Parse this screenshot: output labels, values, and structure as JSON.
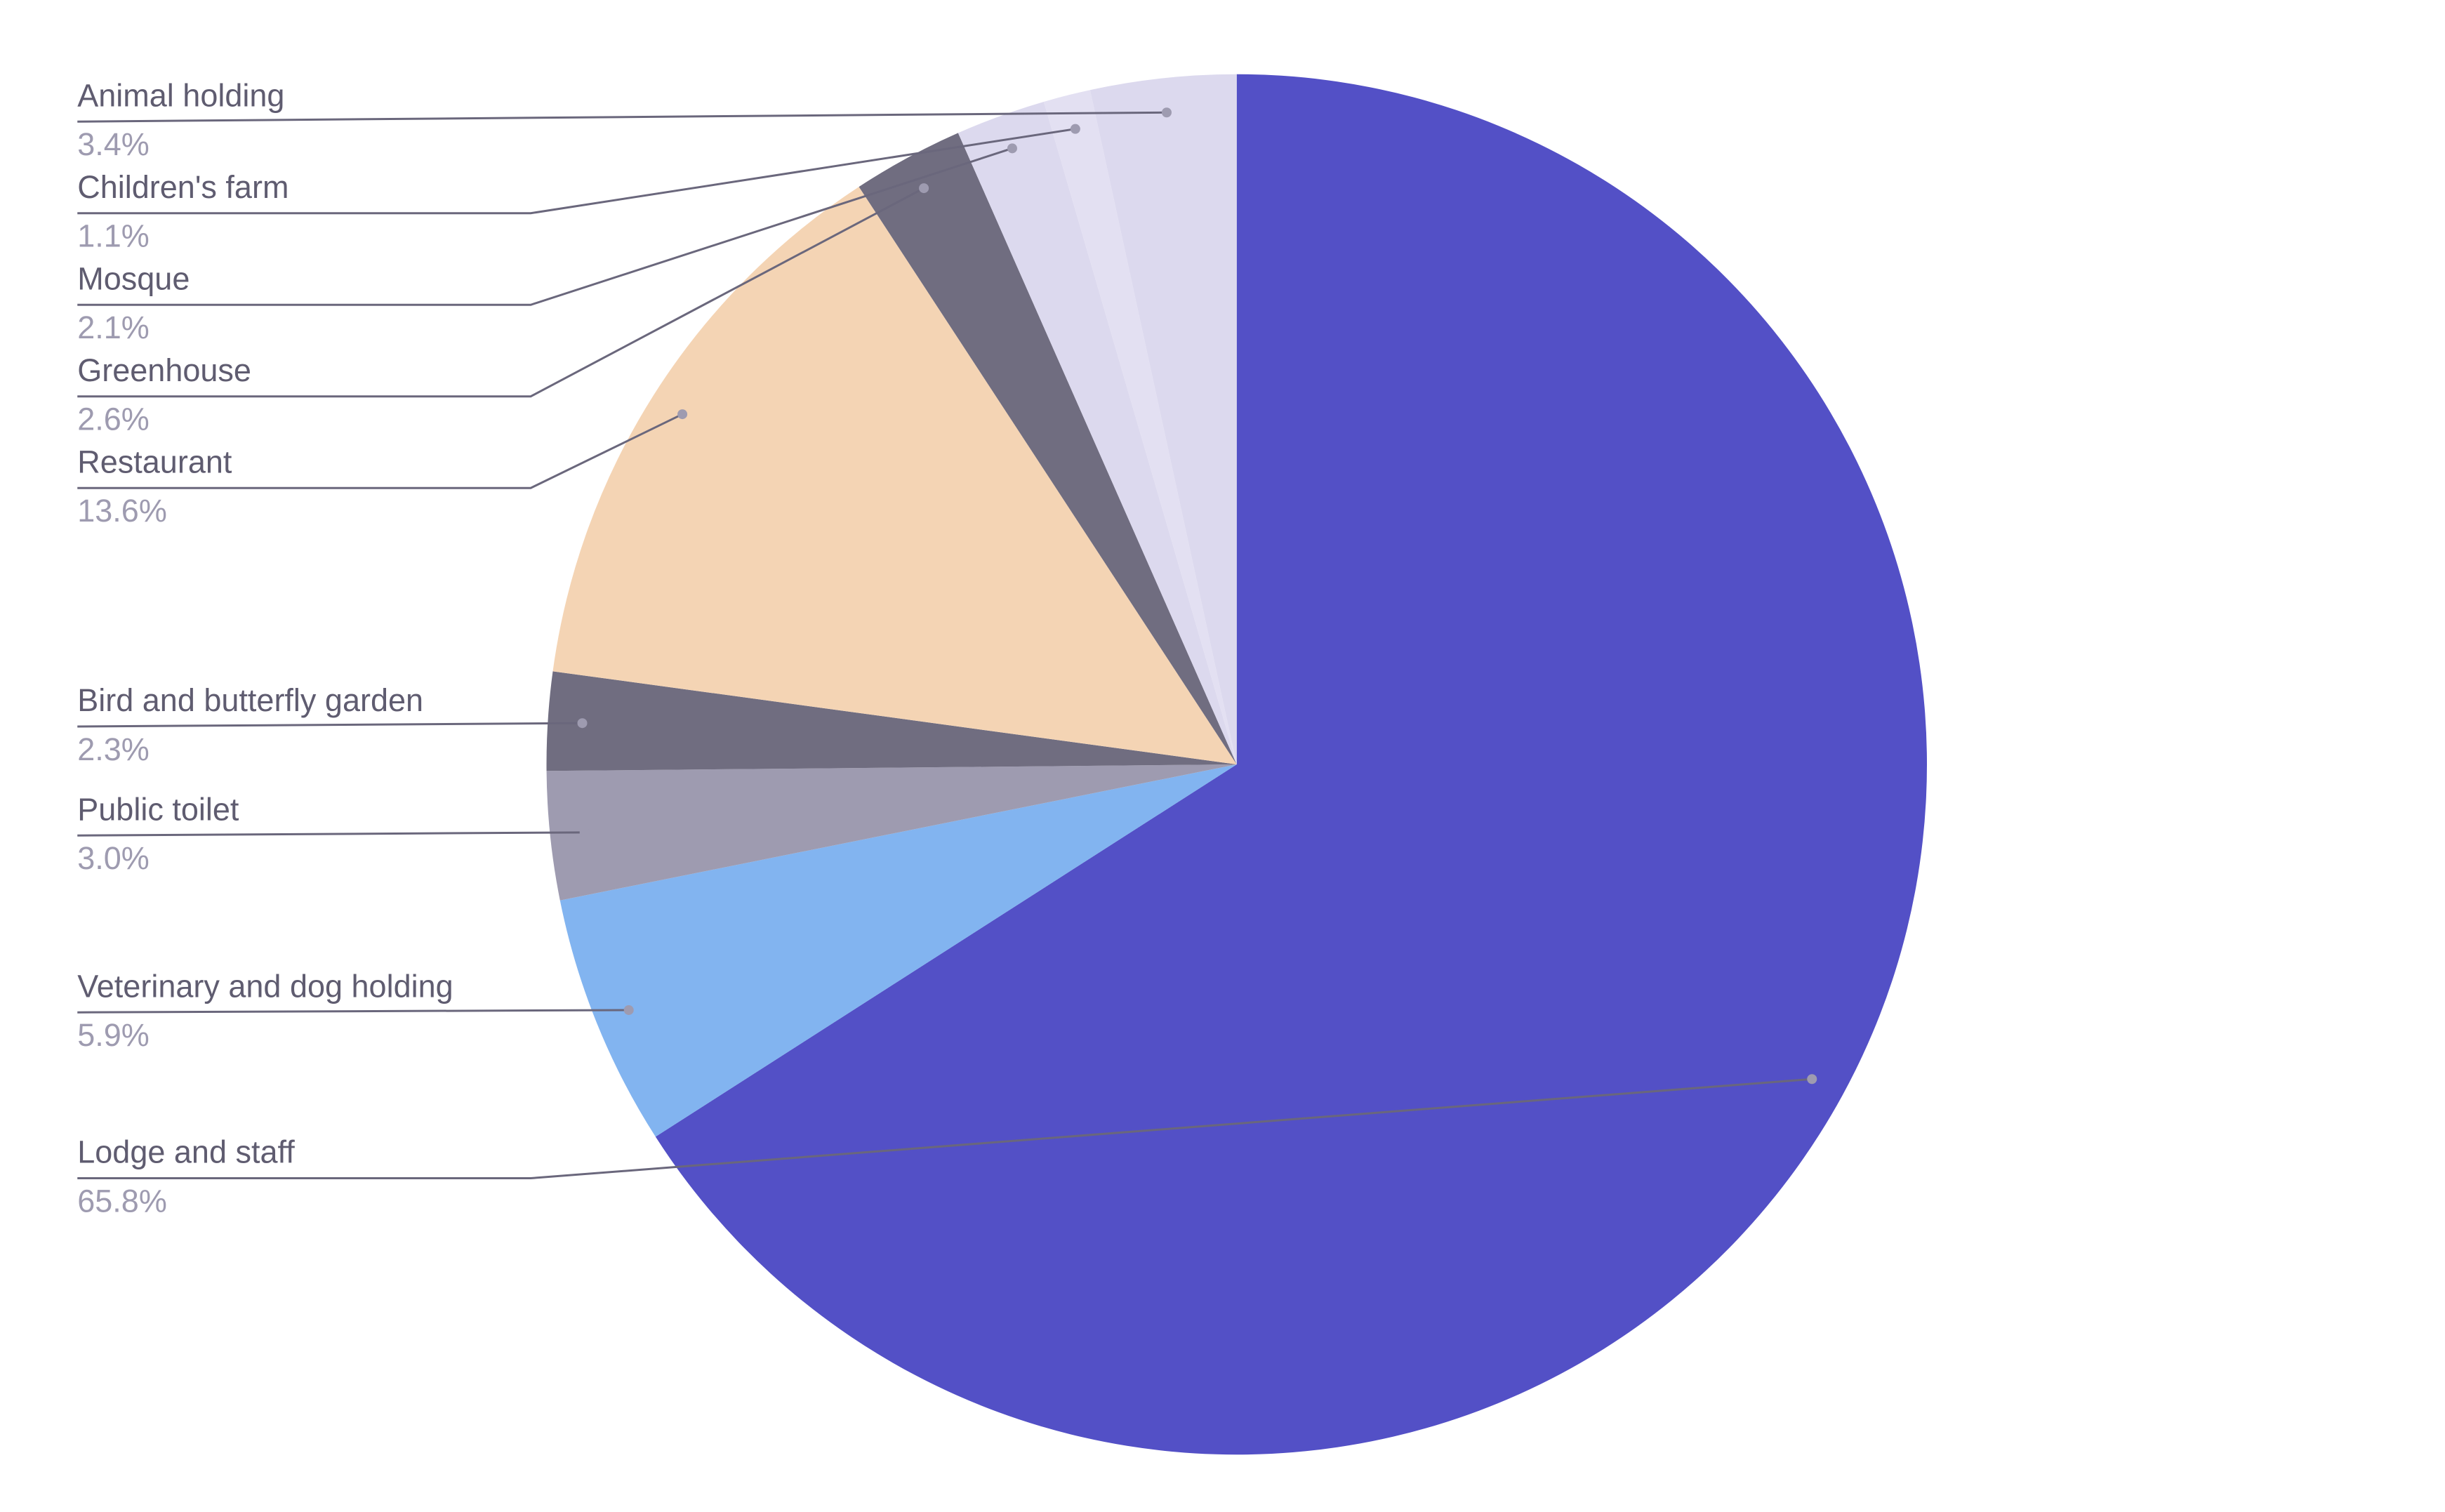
{
  "chart_data": {
    "type": "pie",
    "categories": [
      "Lodge and staff",
      "Veterinary and dog holding",
      "Public toilet",
      "Bird and butterfly garden",
      "Restaurant",
      "Greenhouse",
      "Mosque",
      "Children's farm",
      "Animal holding"
    ],
    "values": [
      65.8,
      5.9,
      3.0,
      2.3,
      13.6,
      2.6,
      2.1,
      1.1,
      3.4
    ],
    "value_labels": [
      "65.8%",
      "5.9%",
      "3.0%",
      "2.3%",
      "13.6%",
      "2.6%",
      "2.1%",
      "1.1%",
      "3.4%"
    ],
    "colors": [
      "#5350c6",
      "#82b4f0",
      "#9e9bb0",
      "#706d80",
      "#f4d4b4",
      "#706d80",
      "#dcd9ee",
      "#e3e0f2",
      "#dcd9ee"
    ]
  }
}
